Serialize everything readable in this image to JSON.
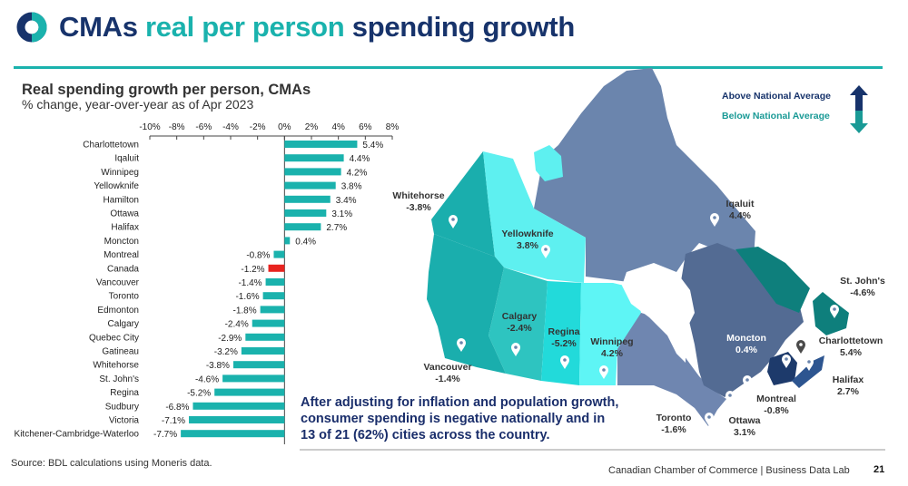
{
  "header": {
    "title_part1": "CMAs",
    "title_part2": "real per person",
    "title_part3": "spending growth"
  },
  "chart_data": {
    "type": "bar",
    "orientation": "horizontal",
    "title": "Real spending growth per person, CMAs",
    "subtitle": "% change, year-over-year as of Apr 2023",
    "xlim": [
      -10,
      8
    ],
    "xticks": [
      "-10%",
      "-8%",
      "-6%",
      "-4%",
      "-2%",
      "0%",
      "2%",
      "4%",
      "6%",
      "8%"
    ],
    "tick_values": [
      -10,
      -8,
      -6,
      -4,
      -2,
      0,
      2,
      4,
      6,
      8
    ],
    "categories": [
      "Charlottetown",
      "Iqaluit",
      "Winnipeg",
      "Yellowknife",
      "Hamilton",
      "Ottawa",
      "Halifax",
      "Moncton",
      "Montreal",
      "Canada",
      "Vancouver",
      "Toronto",
      "Edmonton",
      "Calgary",
      "Quebec City",
      "Gatineau",
      "Whitehorse",
      "St. John's",
      "Regina",
      "Sudbury",
      "Victoria",
      "Kitchener-Cambridge-Waterloo"
    ],
    "values": [
      5.4,
      4.4,
      4.2,
      3.8,
      3.4,
      3.1,
      2.7,
      0.4,
      -0.8,
      -1.2,
      -1.4,
      -1.6,
      -1.8,
      -2.4,
      -2.9,
      -3.2,
      -3.8,
      -4.6,
      -5.2,
      -6.8,
      -7.1,
      -7.7
    ],
    "labels": [
      "5.4%",
      "4.4%",
      "4.2%",
      "3.8%",
      "3.4%",
      "3.1%",
      "2.7%",
      "0.4%",
      "-0.8%",
      "-1.2%",
      "-1.4%",
      "-1.6%",
      "-1.8%",
      "-2.4%",
      "-2.9%",
      "-3.2%",
      "-3.8%",
      "-4.6%",
      "-5.2%",
      "-6.8%",
      "-7.1%",
      "-7.7%"
    ],
    "bar_color": "#1ab2ad",
    "highlight": {
      "category": "Canada",
      "color": "#e8231f"
    }
  },
  "legend": {
    "above": "Above National Average",
    "below": "Below National Average",
    "above_color": "#17336b",
    "below_color": "#1a9a96"
  },
  "map": {
    "cities": [
      {
        "name": "Whitehorse",
        "value": "-3.8%"
      },
      {
        "name": "Yellowknife",
        "value": "3.8%"
      },
      {
        "name": "Iqaluit",
        "value": "4.4%"
      },
      {
        "name": "Vancouver",
        "value": "-1.4%"
      },
      {
        "name": "Calgary",
        "value": "-2.4%"
      },
      {
        "name": "Regina",
        "value": "-5.2%"
      },
      {
        "name": "Winnipeg",
        "value": "4.2%"
      },
      {
        "name": "Moncton",
        "value": "0.4%"
      },
      {
        "name": "St. John's",
        "value": "-4.6%"
      },
      {
        "name": "Charlottetown",
        "value": "5.4%"
      },
      {
        "name": "Halifax",
        "value": "2.7%"
      },
      {
        "name": "Montreal",
        "value": "-0.8%"
      },
      {
        "name": "Toronto",
        "value": "-1.6%"
      },
      {
        "name": "Ottawa",
        "value": "3.1%"
      }
    ]
  },
  "callout": {
    "line1": "After adjusting for inflation and population growth,",
    "line2": "consumer spending is negative nationally and in",
    "line3": "13 of 21 (62%) cities across the country."
  },
  "source": "Source: BDL calculations using Moneris data.",
  "footer": {
    "org": "Canadian Chamber of Commerce | Business Data Lab",
    "page": "21"
  }
}
